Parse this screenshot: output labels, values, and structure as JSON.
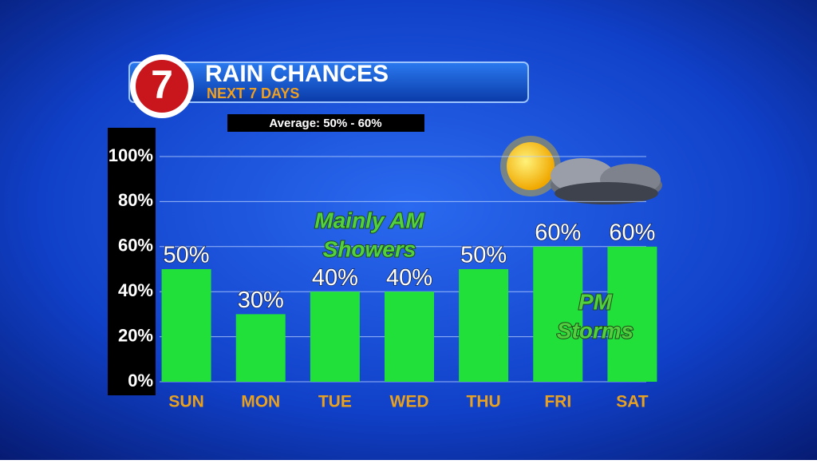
{
  "chart_data": {
    "type": "bar",
    "logo": "7",
    "title": "RAIN CHANCES",
    "subtitle": "NEXT 7 DAYS",
    "note": "Average: 50% - 60%",
    "annotations": [
      [
        "Mainly AM",
        "Showers"
      ],
      [
        "PM",
        "Storms"
      ]
    ],
    "categories": [
      "SUN",
      "MON",
      "TUE",
      "WED",
      "THU",
      "FRI",
      "SAT"
    ],
    "values": [
      50,
      30,
      40,
      40,
      50,
      60,
      60
    ],
    "value_labels": [
      "50%",
      "30%",
      "40%",
      "40%",
      "50%",
      "60%",
      "60%"
    ],
    "color": "#22e03a",
    "ylim": [
      0,
      100
    ],
    "yticks": [
      {
        "value": 0,
        "label": "0%"
      },
      {
        "value": 20,
        "label": "20%"
      },
      {
        "value": 40,
        "label": "40%"
      },
      {
        "value": 60,
        "label": "60%"
      },
      {
        "value": 80,
        "label": "80%"
      },
      {
        "value": 100,
        "label": "100%"
      }
    ],
    "grid": true
  }
}
